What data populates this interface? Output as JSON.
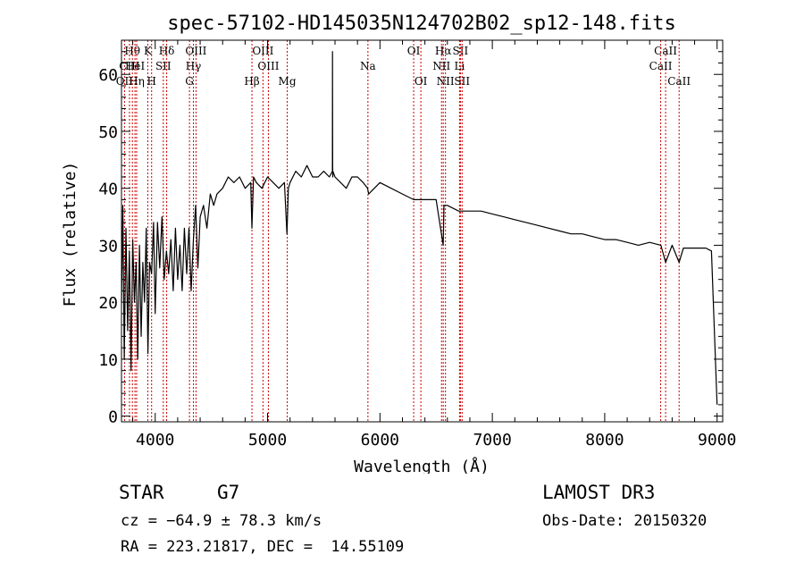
{
  "chart_data": {
    "type": "line",
    "title": "spec-57102-HD145035N124702B02_sp12-148.fits",
    "xlabel": "Wavelength (Å)",
    "ylabel": "Flux (relative)",
    "xlim": [
      3700,
      9050
    ],
    "ylim": [
      -1,
      66
    ],
    "xticks": [
      4000,
      5000,
      6000,
      7000,
      8000,
      9000
    ],
    "yticks": [
      0,
      10,
      20,
      30,
      40,
      50,
      60
    ],
    "line_color": "#000000",
    "marker_color": "#cc0000",
    "series": [
      {
        "name": "flux",
        "x": [
          3700,
          3712,
          3725,
          3740,
          3755,
          3770,
          3785,
          3800,
          3815,
          3830,
          3845,
          3860,
          3875,
          3890,
          3905,
          3920,
          3935,
          3950,
          3968,
          3985,
          4000,
          4020,
          4040,
          4060,
          4080,
          4100,
          4120,
          4140,
          4160,
          4180,
          4200,
          4220,
          4240,
          4260,
          4280,
          4300,
          4320,
          4340,
          4360,
          4380,
          4400,
          4430,
          4460,
          4490,
          4520,
          4550,
          4600,
          4650,
          4700,
          4750,
          4800,
          4850,
          4861,
          4875,
          4900,
          4950,
          5000,
          5050,
          5100,
          5150,
          5172,
          5185,
          5200,
          5250,
          5300,
          5350,
          5400,
          5450,
          5500,
          5550,
          5577,
          5578,
          5579,
          5580,
          5581,
          5600,
          5650,
          5700,
          5750,
          5800,
          5850,
          5890,
          5900,
          5950,
          6000,
          6100,
          6200,
          6300,
          6400,
          6500,
          6563,
          6570,
          6600,
          6700,
          6800,
          6900,
          7000,
          7100,
          7200,
          7300,
          7400,
          7500,
          7600,
          7700,
          7800,
          7900,
          8000,
          8100,
          8200,
          8300,
          8400,
          8500,
          8542,
          8600,
          8662,
          8700,
          8800,
          8900,
          8950,
          9000
        ],
        "y": [
          20,
          37,
          10,
          33,
          15,
          29,
          8,
          31,
          20,
          27,
          10,
          30,
          14,
          27,
          20,
          33,
          11,
          27,
          25,
          34,
          18,
          34,
          26,
          35,
          24,
          29,
          25,
          31,
          22,
          33,
          24,
          30,
          22,
          33,
          25,
          33,
          22,
          31,
          37,
          26,
          35,
          37,
          33,
          39,
          37,
          39,
          40,
          42,
          41,
          42,
          40,
          41,
          33,
          42,
          41,
          40,
          42,
          41,
          40,
          41,
          32,
          40,
          41,
          43,
          42,
          44,
          42,
          42,
          43,
          42,
          43,
          64,
          44,
          42,
          43,
          42,
          41,
          40,
          42,
          42,
          41,
          40,
          39,
          40,
          41,
          40,
          39,
          38,
          38,
          38,
          30,
          37,
          37,
          36,
          36,
          36,
          35.5,
          35,
          34.5,
          34,
          33.5,
          33,
          32.5,
          32,
          32,
          31.5,
          31,
          31,
          30.5,
          30,
          30.5,
          30,
          27,
          30,
          27,
          29.5,
          29.5,
          29.5,
          29,
          2
        ]
      }
    ],
    "line_markers": [
      {
        "label": "Hθ",
        "wave": 3797,
        "row": 0
      },
      {
        "label": "CIII",
        "wave": 3771,
        "row": 1
      },
      {
        "label": "OII",
        "wave": 3727,
        "row": 2
      },
      {
        "label": "HeI",
        "wave": 3820,
        "row": 1
      },
      {
        "label": "Hη",
        "wave": 3835,
        "row": 2
      },
      {
        "label": "K",
        "wave": 3934,
        "row": 0
      },
      {
        "label": "SII",
        "wave": 4072,
        "row": 1
      },
      {
        "label": "H",
        "wave": 3968,
        "row": 2
      },
      {
        "label": "Hδ",
        "wave": 4102,
        "row": 0
      },
      {
        "label": "OIII",
        "wave": 4363,
        "row": 0
      },
      {
        "label": "Hγ",
        "wave": 4340,
        "row": 1
      },
      {
        "label": "G",
        "wave": 4305,
        "row": 2
      },
      {
        "label": "OIII",
        "wave": 4959,
        "row": 0
      },
      {
        "label": "OIII",
        "wave": 5007,
        "row": 1
      },
      {
        "label": "Hβ",
        "wave": 4861,
        "row": 2
      },
      {
        "label": "Mg",
        "wave": 5175,
        "row": 2
      },
      {
        "label": "Na",
        "wave": 5893,
        "row": 1
      },
      {
        "label": "OI",
        "wave": 6300,
        "row": 0
      },
      {
        "label": "OI",
        "wave": 6364,
        "row": 2
      },
      {
        "label": "Hα",
        "wave": 6563,
        "row": 0
      },
      {
        "label": "NII",
        "wave": 6548,
        "row": 1
      },
      {
        "label": "NII",
        "wave": 6583,
        "row": 2
      },
      {
        "label": "SII",
        "wave": 6716,
        "row": 0
      },
      {
        "label": "Li",
        "wave": 6708,
        "row": 1
      },
      {
        "label": "SII",
        "wave": 6731,
        "row": 2
      },
      {
        "label": "CaII",
        "wave": 8542,
        "row": 0
      },
      {
        "label": "CaII",
        "wave": 8498,
        "row": 1
      },
      {
        "label": "CaII",
        "wave": 8662,
        "row": 2
      }
    ]
  },
  "info": {
    "object_class": "STAR",
    "subclass": "G7",
    "redshift": "cz = −64.9 ± 78.3 km/s",
    "coords": "RA = 223.21817, DEC =  14.55109",
    "survey": "LAMOST DR3",
    "obs_date": "Obs-Date: 20150320"
  }
}
